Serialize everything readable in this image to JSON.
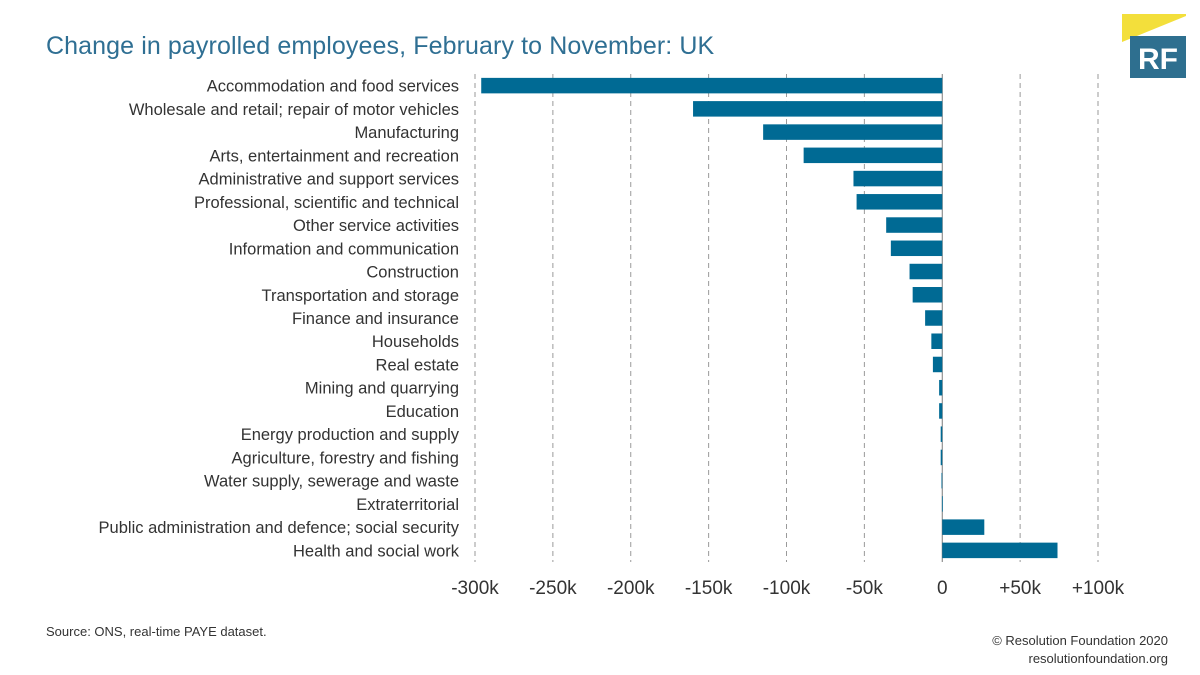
{
  "header": {
    "title": "Change in payrolled employees, February to November: UK"
  },
  "logo": {
    "text": "RF",
    "colors": {
      "yellow": "#f3df3b",
      "teal": "#2e6f8f"
    }
  },
  "footer": {
    "source": "Source: ONS, real-time PAYE dataset.",
    "copyright": "© Resolution Foundation 2020",
    "website": "resolutionfoundation.org"
  },
  "chart_data": {
    "type": "bar",
    "orientation": "horizontal",
    "title": "Change in payrolled employees, February to November: UK",
    "xlim": [
      -300000,
      100000
    ],
    "grid": true,
    "bar_color": "#006a94",
    "x_tick_values": [
      -300000,
      -250000,
      -200000,
      -150000,
      -100000,
      -50000,
      0,
      50000,
      100000
    ],
    "x_tick_labels": [
      "-300k",
      "-250k",
      "-200k",
      "-150k",
      "-100k",
      "-50k",
      "0",
      "+50k",
      "+100k"
    ],
    "categories": [
      "Accommodation and food services",
      "Wholesale and retail; repair of motor vehicles",
      "Manufacturing",
      "Arts, entertainment and recreation",
      "Administrative and support services",
      "Professional, scientific and technical",
      "Other service activities",
      "Information and communication",
      "Construction",
      "Transportation and storage",
      "Finance and insurance",
      "Households",
      "Real estate",
      "Mining and quarrying",
      "Education",
      "Energy production and supply",
      "Agriculture, forestry and fishing",
      "Water supply, sewerage and waste",
      "Extraterritorial",
      "Public administration and defence; social security",
      "Health and social work"
    ],
    "values": [
      -296000,
      -160000,
      -115000,
      -89000,
      -57000,
      -55000,
      -36000,
      -33000,
      -21000,
      -19000,
      -11000,
      -7000,
      -6000,
      -2000,
      -2000,
      -1000,
      -1000,
      -500,
      -200,
      27000,
      74000
    ]
  }
}
